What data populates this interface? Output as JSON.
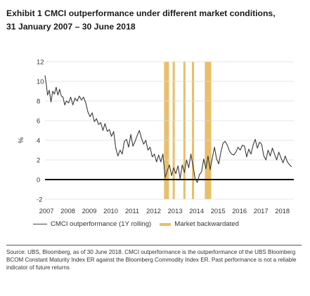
{
  "title_line1": "Exhibit 1 CMCI outperformance under different market conditions,",
  "title_line2": "31 January 2007 – 30 June 2018",
  "footnote": "Source: UBS, Bloomberg, as of 30 June 2018. CMCI outperformance is the outperformance of the UBS Bloomberg BCOM Constant Maturity Index ER against the Bloomberg Commodity Index ER. Past performance is not a reliable indicator of future returns",
  "colors": {
    "line": "#3a3a3a",
    "band": "#e8bf6a",
    "zero_line": "#000000",
    "grid": "#dcdcdc"
  },
  "chart_data": {
    "type": "line",
    "ylabel": "%",
    "ylim": [
      -2,
      12
    ],
    "y_ticks": [
      "12",
      "10",
      "8",
      "6",
      "4",
      "2",
      "0",
      "-2"
    ],
    "y_tick_values": [
      12,
      10,
      8,
      6,
      4,
      2,
      0,
      -2
    ],
    "x_ticks": [
      "2007",
      "2008",
      "2009",
      "2010",
      "2011",
      "2012",
      "2013",
      "2014",
      "2015",
      "2016",
      "2017",
      "2018"
    ],
    "x_tick_values": [
      2007,
      2008,
      2009,
      2010,
      2011,
      2012,
      2013,
      2014,
      2015,
      2016,
      2017,
      2018
    ],
    "xlim": [
      2007,
      2018.6
    ],
    "grid": "horizontal",
    "legend": [
      {
        "label": "CMCI outperformance (1Y rolling)",
        "kind": "line"
      },
      {
        "label": "Market backwardated",
        "kind": "band"
      }
    ],
    "bands": [
      {
        "start": 2012.55,
        "end": 2012.78
      },
      {
        "start": 2012.95,
        "end": 2013.05
      },
      {
        "start": 2013.45,
        "end": 2013.55
      },
      {
        "start": 2013.85,
        "end": 2013.95
      },
      {
        "start": 2014.45,
        "end": 2014.75
      }
    ],
    "series": [
      {
        "name": "CMCI outperformance (1Y rolling)",
        "x": [
          2007.0,
          2007.06,
          2007.12,
          2007.2,
          2007.28,
          2007.36,
          2007.44,
          2007.52,
          2007.6,
          2007.68,
          2007.76,
          2007.84,
          2007.92,
          2008.0,
          2008.1,
          2008.2,
          2008.3,
          2008.4,
          2008.5,
          2008.6,
          2008.7,
          2008.8,
          2008.9,
          2009.0,
          2009.1,
          2009.2,
          2009.3,
          2009.4,
          2009.5,
          2009.6,
          2009.7,
          2009.8,
          2009.9,
          2010.0,
          2010.1,
          2010.2,
          2010.3,
          2010.4,
          2010.5,
          2010.6,
          2010.7,
          2010.8,
          2010.9,
          2011.0,
          2011.1,
          2011.2,
          2011.3,
          2011.4,
          2011.5,
          2011.6,
          2011.7,
          2011.8,
          2011.9,
          2012.0,
          2012.1,
          2012.2,
          2012.3,
          2012.4,
          2012.5,
          2012.6,
          2012.7,
          2012.8,
          2012.9,
          2013.0,
          2013.1,
          2013.2,
          2013.3,
          2013.4,
          2013.5,
          2013.6,
          2013.7,
          2013.8,
          2013.9,
          2014.0,
          2014.1,
          2014.2,
          2014.3,
          2014.4,
          2014.5,
          2014.6,
          2014.7,
          2014.8,
          2014.9,
          2015.0,
          2015.1,
          2015.2,
          2015.3,
          2015.4,
          2015.5,
          2015.6,
          2015.7,
          2015.8,
          2015.9,
          2016.0,
          2016.1,
          2016.2,
          2016.3,
          2016.4,
          2016.5,
          2016.6,
          2016.7,
          2016.8,
          2016.9,
          2017.0,
          2017.1,
          2017.2,
          2017.3,
          2017.4,
          2017.5,
          2017.6,
          2017.7,
          2017.8,
          2017.9,
          2018.0,
          2018.1,
          2018.2,
          2018.3,
          2018.4,
          2018.5
        ],
        "values": [
          10.6,
          9.7,
          8.6,
          9.1,
          7.9,
          9.0,
          8.7,
          9.4,
          8.6,
          9.2,
          8.5,
          8.4,
          7.6,
          8.0,
          7.8,
          8.4,
          7.6,
          8.3,
          8.0,
          8.5,
          8.1,
          8.4,
          7.8,
          6.9,
          6.4,
          6.8,
          5.9,
          6.2,
          5.6,
          5.8,
          5.0,
          5.7,
          4.9,
          5.1,
          4.4,
          4.9,
          3.2,
          2.4,
          3.0,
          2.6,
          3.9,
          4.1,
          3.3,
          4.6,
          3.4,
          3.9,
          4.5,
          5.0,
          4.2,
          3.6,
          4.0,
          3.0,
          3.3,
          2.3,
          2.6,
          1.8,
          2.5,
          1.8,
          2.6,
          0.2,
          0.9,
          1.5,
          0.4,
          1.2,
          0.6,
          1.4,
          0.1,
          1.5,
          0.7,
          2.0,
          1.2,
          2.6,
          1.4,
          0.1,
          -0.3,
          0.5,
          0.8,
          2.1,
          1.1,
          2.4,
          1.0,
          2.2,
          3.3,
          2.1,
          1.6,
          2.8,
          3.7,
          3.9,
          3.5,
          2.9,
          2.6,
          2.5,
          2.8,
          3.3,
          3.0,
          3.5,
          3.4,
          2.3,
          3.1,
          2.6,
          3.5,
          4.1,
          3.2,
          3.8,
          3.6,
          2.4,
          2.0,
          3.0,
          2.4,
          3.2,
          2.6,
          2.0,
          2.8,
          2.2,
          1.7,
          2.4,
          1.8,
          1.5,
          1.3
        ]
      }
    ]
  }
}
